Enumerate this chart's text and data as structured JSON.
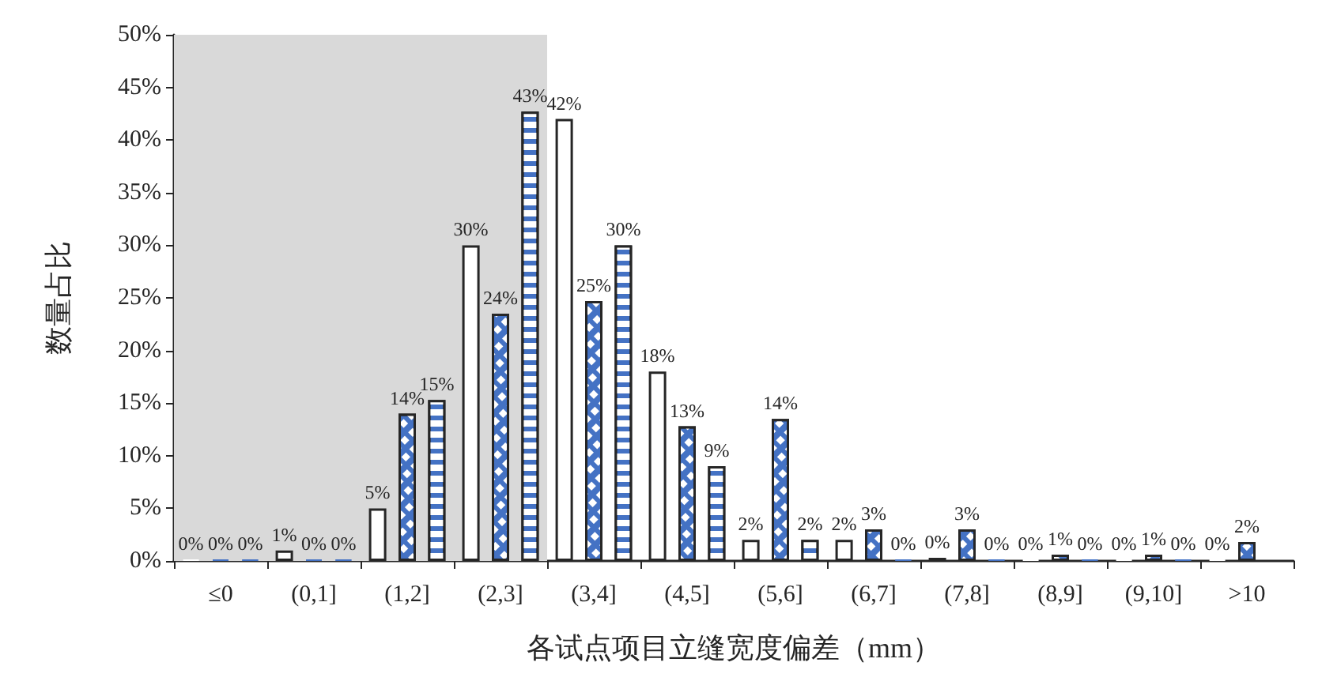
{
  "chart_data": {
    "type": "bar",
    "xlabel": "各试点项目立缝宽度偏差（mm）",
    "ylabel": "数量占比",
    "categories": [
      "≤0",
      "(0,1]",
      "(1,2]",
      "(2,3]",
      "(3,4]",
      "(4,5]",
      "(5,6]",
      "(6,7]",
      "(7,8]",
      "(8,9]",
      "(9,10]",
      ">10"
    ],
    "series": [
      {
        "color": "#ffffff",
        "values": [
          0,
          1,
          5,
          30,
          42,
          18,
          2,
          2,
          0.3,
          0,
          0,
          0
        ],
        "value_labels": [
          "0%",
          "1%",
          "5%",
          "30%",
          "42%",
          "18%",
          "2%",
          "2%",
          "0%",
          "0%",
          "0%",
          "0%"
        ]
      },
      {
        "color": "#4472c4",
        "values": [
          0,
          0,
          14,
          23.5,
          24.7,
          12.8,
          13.5,
          3,
          3,
          0.6,
          0.6,
          1.8
        ],
        "value_labels": [
          "0%",
          "0%",
          "14%",
          "24%",
          "25%",
          "13%",
          "14%",
          "3%",
          "3%",
          "1%",
          "1%",
          "2%"
        ]
      },
      {
        "color": "#4472c4",
        "values": [
          0,
          0,
          15.3,
          42.7,
          30,
          9,
          2,
          0,
          0,
          0,
          0,
          null
        ],
        "value_labels": [
          "0%",
          "0%",
          "15%",
          "43%",
          "30%",
          "9%",
          "2%",
          "0%",
          "0%",
          "0%",
          "0%",
          null
        ]
      }
    ],
    "ylim": [
      0,
      50
    ],
    "yticks": [
      {
        "value": 0,
        "label": "0%"
      },
      {
        "value": 5,
        "label": "5%"
      },
      {
        "value": 10,
        "label": "10%"
      },
      {
        "value": 15,
        "label": "15%"
      },
      {
        "value": 20,
        "label": "20%"
      },
      {
        "value": 25,
        "label": "25%"
      },
      {
        "value": 30,
        "label": "30%"
      },
      {
        "value": 35,
        "label": "35%"
      },
      {
        "value": 40,
        "label": "40%"
      },
      {
        "value": 45,
        "label": "45%"
      },
      {
        "value": 50,
        "label": "50%"
      }
    ],
    "bands": [
      {
        "axis": "x",
        "from": "≤0",
        "to": "(2,3]",
        "color": "#d9d9d9"
      }
    ],
    "grid": false
  }
}
